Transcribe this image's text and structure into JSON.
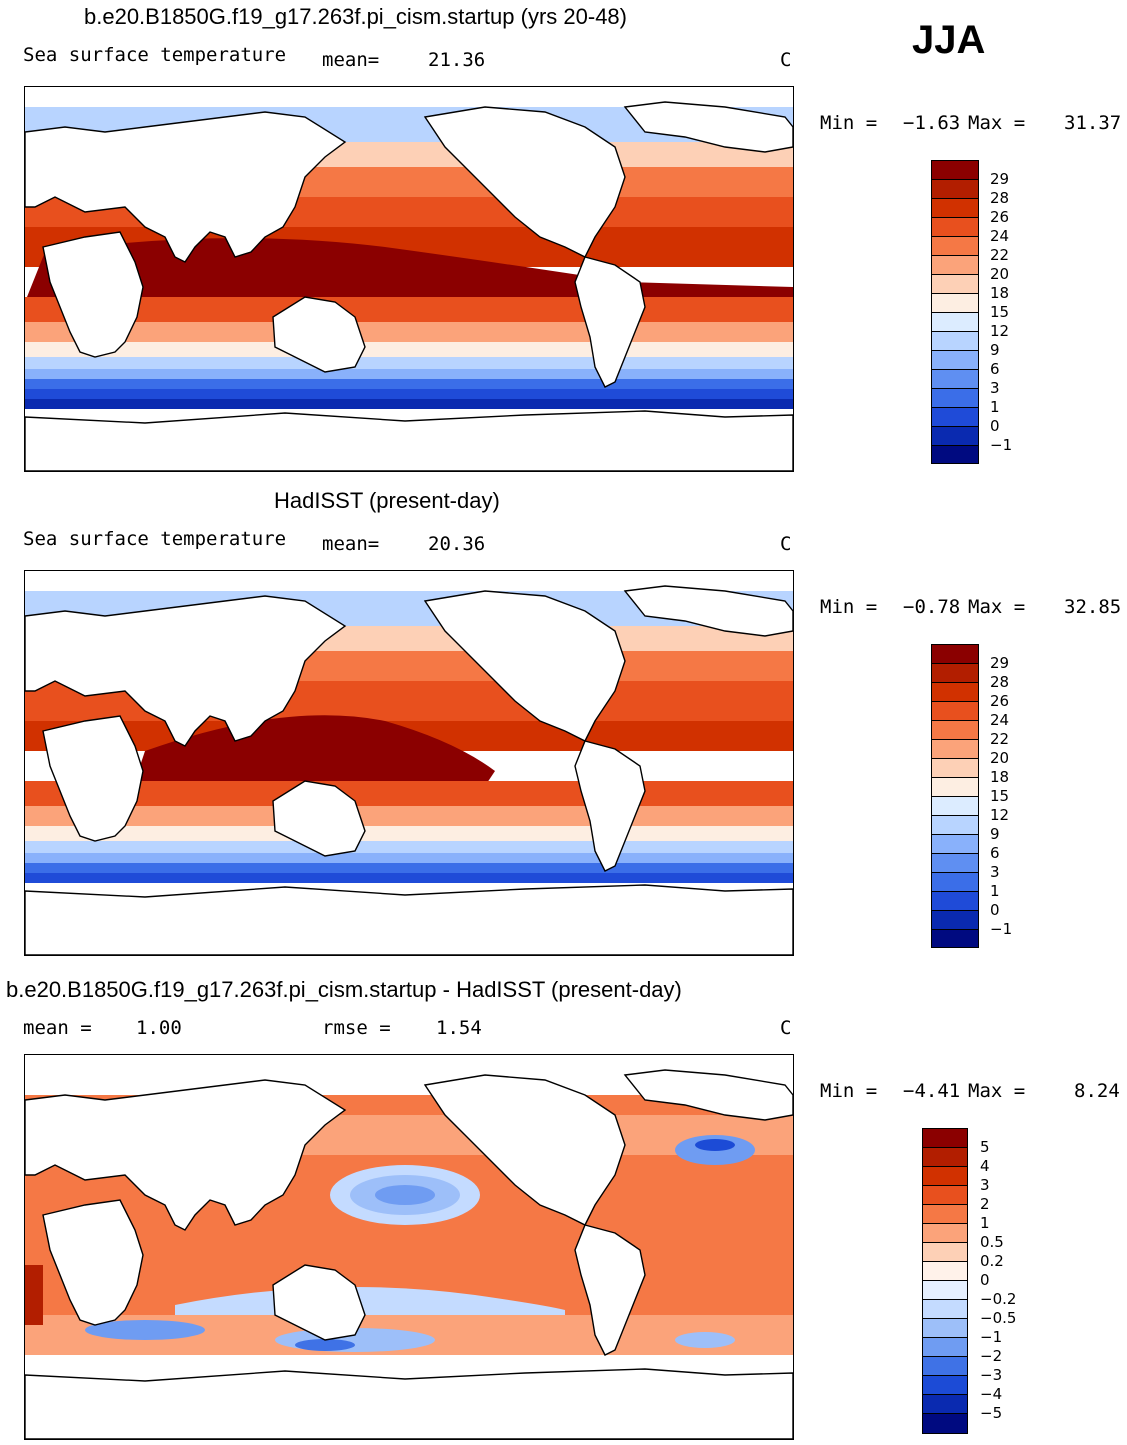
{
  "season": "JJA",
  "panels": [
    {
      "title": "b.e20.B1850G.f19_g17.263f.pi_cism.startup (yrs 20-48)",
      "field_label": "Sea surface temperature",
      "stat1_label": "mean=",
      "stat1_value": "21.36",
      "stat2_label": "",
      "stat2_value": "",
      "units": "C",
      "min_label": "Min =",
      "min_value": "−1.63",
      "max_label": "Max =",
      "max_value": "31.37",
      "colorbar_labels": [
        "29",
        "28",
        "26",
        "24",
        "22",
        "20",
        "18",
        "15",
        "12",
        "9",
        "6",
        "3",
        "1",
        "0",
        "−1"
      ],
      "colorbar_colors": [
        "#8b0000",
        "#b21e00",
        "#d13100",
        "#e8501e",
        "#f57845",
        "#fba37a",
        "#fdd0b6",
        "#fdeee2",
        "#dcecff",
        "#b8d4ff",
        "#89b1fb",
        "#5f8ff2",
        "#3b6ee8",
        "#1f4bd8",
        "#0a2ab0",
        "#000a80"
      ]
    },
    {
      "title": "HadISST (present-day)",
      "field_label": "Sea surface temperature",
      "stat1_label": "mean=",
      "stat1_value": "20.36",
      "stat2_label": "",
      "stat2_value": "",
      "units": "C",
      "min_label": "Min =",
      "min_value": "−0.78",
      "max_label": "Max =",
      "max_value": "32.85",
      "colorbar_labels": [
        "29",
        "28",
        "26",
        "24",
        "22",
        "20",
        "18",
        "15",
        "12",
        "9",
        "6",
        "3",
        "1",
        "0",
        "−1"
      ],
      "colorbar_colors": [
        "#8b0000",
        "#b21e00",
        "#d13100",
        "#e8501e",
        "#f57845",
        "#fba37a",
        "#fdd0b6",
        "#fdeee2",
        "#dcecff",
        "#b8d4ff",
        "#89b1fb",
        "#5f8ff2",
        "#3b6ee8",
        "#1f4bd8",
        "#0a2ab0",
        "#000a80"
      ]
    },
    {
      "title": "b.e20.B1850G.f19_g17.263f.pi_cism.startup - HadISST (present-day)",
      "field_label": "",
      "stat1_label": "mean =",
      "stat1_value": "1.00",
      "stat2_label": "rmse =",
      "stat2_value": "1.54",
      "units": "C",
      "min_label": "Min =",
      "min_value": "−4.41",
      "max_label": "Max =",
      "max_value": "8.24",
      "colorbar_labels": [
        "5",
        "4",
        "3",
        "2",
        "1",
        "0.5",
        "0.2",
        "0",
        "−0.2",
        "−0.5",
        "−1",
        "−2",
        "−3",
        "−4",
        "−5"
      ],
      "colorbar_colors": [
        "#8b0000",
        "#b21e00",
        "#d13100",
        "#e8501e",
        "#f57845",
        "#fba37a",
        "#fdd0b6",
        "#fff2ea",
        "#e6f0ff",
        "#c4dbff",
        "#9dbff9",
        "#6f9cf2",
        "#3f72e6",
        "#1c4bd6",
        "#0a2ab0",
        "#000a80"
      ]
    }
  ]
}
